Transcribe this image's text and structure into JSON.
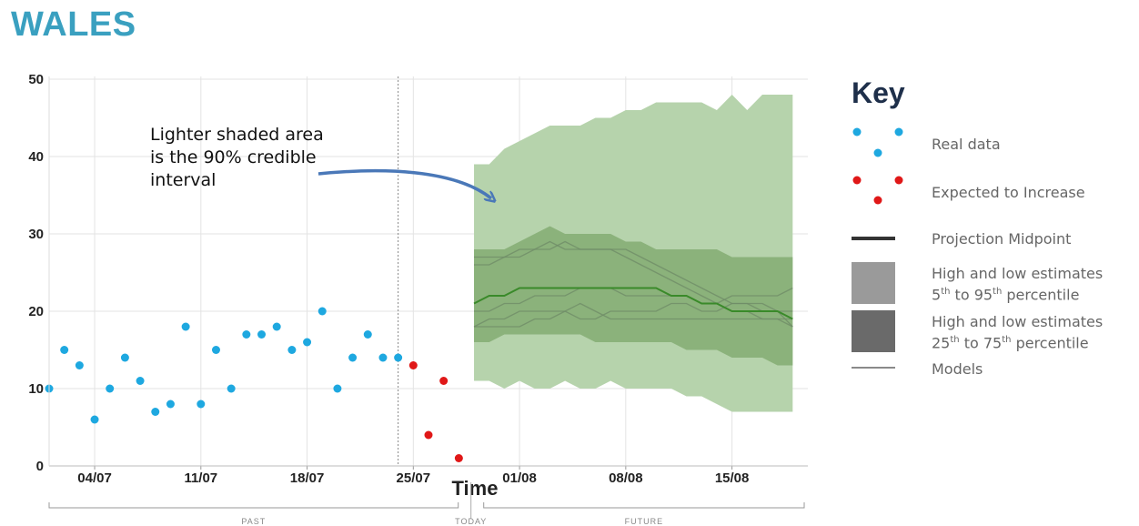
{
  "title": "WALES",
  "annotation": "Lighter shaded area is the 90% credible interval",
  "key": {
    "title": "Key",
    "real_data": "Real data",
    "expected": "Expected to Increase",
    "midpoint": "Projection Midpoint",
    "light_line1": "High and low estimates",
    "light_pct_a": "5",
    "light_pct_sup_a": "th",
    "light_pct_mid": " to 95",
    "light_pct_sup_b": "th",
    "light_pct_end": " percentile",
    "dark_line1": "High and low estimates",
    "dark_pct_a": "25",
    "dark_pct_sup_a": "th",
    "dark_pct_mid": " to 75",
    "dark_pct_sup_b": "th",
    "dark_pct_end": " percentile",
    "models": "Models"
  },
  "colors": {
    "title": "#3aa0c0",
    "real": "#1ea8e0",
    "expected": "#e01818",
    "band90": "#b6d3ac",
    "band50": "#84ac72",
    "midpoint": "#3a8a2a",
    "models": "#6f8c68",
    "arrow": "#4a78b8"
  },
  "chart_data": {
    "type": "scatter",
    "xlabel": "Time",
    "x_tick_labels": [
      "04/07",
      "11/07",
      "18/07",
      "25/07",
      "01/08",
      "08/08",
      "15/08"
    ],
    "x_tick_days": [
      4,
      11,
      18,
      25,
      32,
      39,
      46
    ],
    "x_axis_note": "day index: 1 = 01/07",
    "ylim": [
      0,
      50
    ],
    "y_ticks": [
      0,
      10,
      20,
      30,
      40,
      50
    ],
    "period_labels": [
      "PAST",
      "TODAY",
      "FUTURE"
    ],
    "grid": true,
    "real_data": {
      "name": "Real data",
      "x": [
        1,
        2,
        3,
        4,
        5,
        6,
        7,
        8,
        9,
        10,
        11,
        12,
        13,
        14,
        15,
        16,
        17,
        18,
        19,
        20,
        21,
        22,
        23,
        24
      ],
      "y": [
        10,
        15,
        13,
        6,
        10,
        14,
        11,
        7,
        8,
        18,
        8,
        15,
        10,
        17,
        17,
        18,
        15,
        16,
        20,
        10,
        14,
        17,
        14,
        14
      ]
    },
    "expected_to_increase": {
      "name": "Expected to Increase",
      "x": [
        25,
        26,
        27,
        28
      ],
      "y": [
        13,
        4,
        11,
        1
      ]
    },
    "projection": {
      "x": [
        29,
        30,
        31,
        32,
        33,
        34,
        35,
        36,
        37,
        38,
        39,
        40,
        41,
        42,
        43,
        44,
        45,
        46,
        47,
        48,
        49,
        50
      ],
      "p95": [
        39,
        39,
        41,
        42,
        43,
        44,
        44,
        44,
        45,
        45,
        46,
        46,
        47,
        47,
        47,
        47,
        46,
        48,
        46,
        48,
        48,
        48
      ],
      "p5": [
        11,
        11,
        10,
        11,
        10,
        10,
        11,
        10,
        10,
        11,
        10,
        10,
        10,
        10,
        9,
        9,
        8,
        7,
        7,
        7,
        7,
        7
      ],
      "p75": [
        28,
        28,
        28,
        29,
        30,
        31,
        30,
        30,
        30,
        30,
        29,
        29,
        28,
        28,
        28,
        28,
        28,
        27,
        27,
        27,
        27,
        27
      ],
      "p25": [
        16,
        16,
        17,
        17,
        17,
        17,
        17,
        17,
        16,
        16,
        16,
        16,
        16,
        16,
        15,
        15,
        15,
        14,
        14,
        14,
        13,
        13
      ],
      "midpoint": [
        21,
        22,
        22,
        23,
        23,
        23,
        23,
        23,
        23,
        23,
        23,
        23,
        23,
        22,
        22,
        21,
        21,
        20,
        20,
        20,
        20,
        19
      ],
      "models": [
        [
          26,
          26,
          27,
          28,
          28,
          29,
          28,
          28,
          28,
          28,
          27,
          26,
          25,
          24,
          23,
          22,
          21,
          20,
          20,
          19,
          19,
          19
        ],
        [
          20,
          20,
          21,
          21,
          22,
          22,
          22,
          23,
          23,
          23,
          22,
          22,
          22,
          22,
          22,
          21,
          21,
          22,
          22,
          22,
          22,
          23
        ],
        [
          18,
          18,
          18,
          18,
          19,
          19,
          20,
          19,
          19,
          20,
          20,
          20,
          20,
          21,
          21,
          20,
          20,
          21,
          21,
          21,
          20,
          20
        ],
        [
          27,
          27,
          27,
          27,
          28,
          28,
          29,
          28,
          28,
          28,
          28,
          27,
          26,
          25,
          24,
          23,
          22,
          21,
          21,
          20,
          20,
          18
        ],
        [
          18,
          19,
          19,
          20,
          20,
          20,
          20,
          21,
          20,
          19,
          19,
          19,
          19,
          19,
          19,
          19,
          19,
          19,
          19,
          19,
          19,
          18
        ]
      ]
    }
  }
}
